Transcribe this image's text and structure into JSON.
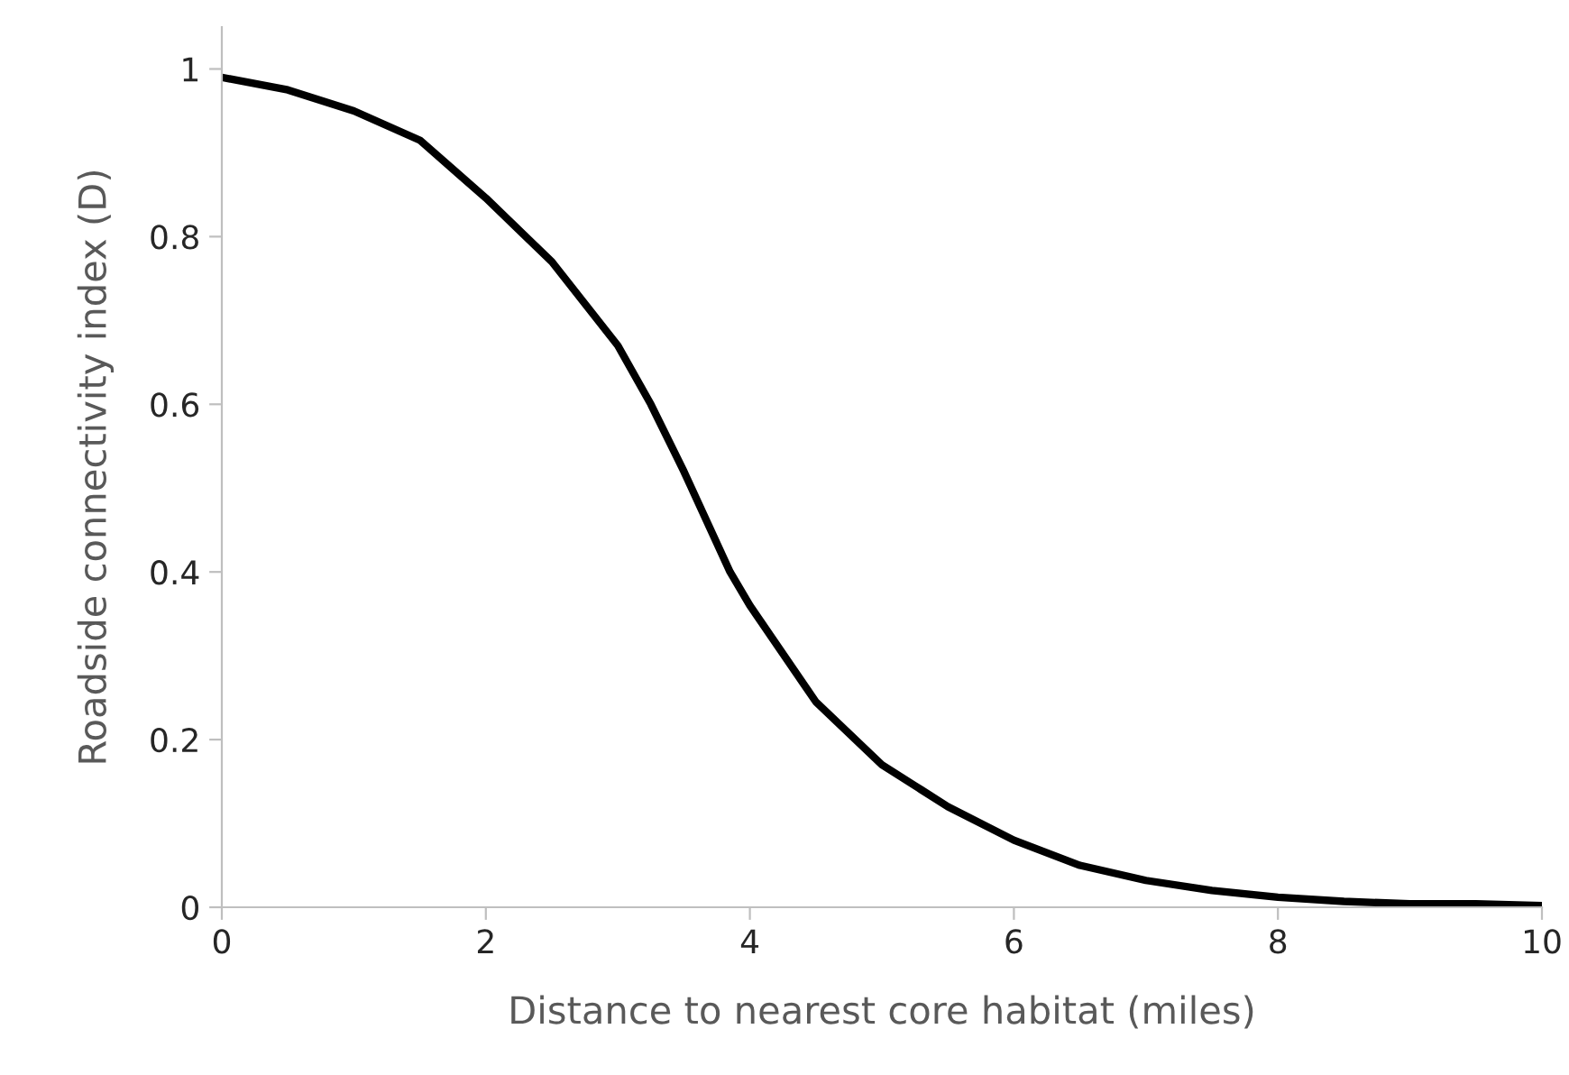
{
  "chart_data": {
    "type": "line",
    "xlabel": "Distance to nearest core habitat (miles)",
    "ylabel": "Roadside connectivity index (D)",
    "series": [
      {
        "color": "#000000",
        "x": [
          0,
          0.5,
          1,
          1.5,
          2,
          2.5,
          3,
          3.25,
          3.5,
          3.85,
          4,
          4.5,
          5,
          5.3,
          5.5,
          6,
          6.5,
          7,
          7.5,
          8,
          8.5,
          9,
          9.5,
          10
        ],
        "values": [
          0.99,
          0.975,
          0.95,
          0.915,
          0.846,
          0.77,
          0.67,
          0.6,
          0.52,
          0.4,
          0.36,
          0.245,
          0.17,
          0.14,
          0.12,
          0.08,
          0.05,
          0.032,
          0.02,
          0.012,
          0.007,
          0.004,
          0.004,
          0.002
        ]
      }
    ],
    "xlim": [
      0,
      10
    ],
    "ylim": [
      0,
      1.05
    ],
    "xticks": [
      0,
      2,
      4,
      6,
      8,
      10
    ],
    "yticks": [
      0,
      0.2,
      0.4,
      0.6,
      0.8,
      1
    ],
    "grid": false,
    "legend": false,
    "marker": "none",
    "line_style": "solid"
  }
}
